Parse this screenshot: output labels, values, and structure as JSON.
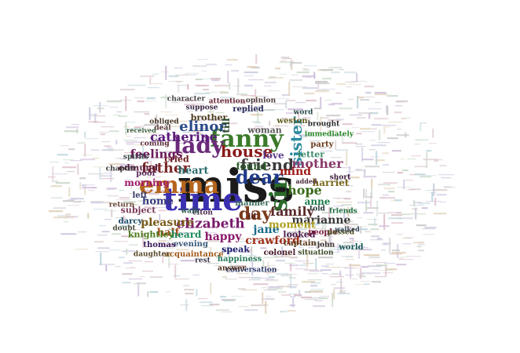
{
  "words": [
    {
      "text": "miss",
      "color": "#1a1a1a"
    },
    {
      "text": "time",
      "color": "#3b2fb0"
    },
    {
      "text": "fanny",
      "color": "#3a7a2a"
    },
    {
      "text": "emma",
      "color": "#b5651d"
    },
    {
      "text": "lady",
      "color": "#6b2a7a"
    },
    {
      "text": "sir",
      "color": "#2a6a2a"
    },
    {
      "text": "dear",
      "color": "#1f3a8a"
    },
    {
      "text": "house",
      "color": "#8a1a1a"
    },
    {
      "text": "sister",
      "color": "#2a8aa0"
    },
    {
      "text": "friend",
      "color": "#3a3a3a"
    },
    {
      "text": "elinor",
      "color": "#2a4a8a"
    },
    {
      "text": "day",
      "color": "#7a3a1a"
    },
    {
      "text": "elizabeth",
      "color": "#7a1a6a"
    },
    {
      "text": "catherine",
      "color": "#5a1a7a"
    },
    {
      "text": "father",
      "color": "#7a2a2a"
    },
    {
      "text": "family",
      "color": "#5a2a2a"
    },
    {
      "text": "jane",
      "color": "#1a6a8a"
    },
    {
      "text": "hope",
      "color": "#3a6a1a"
    },
    {
      "text": "mother",
      "color": "#8a3a6a"
    },
    {
      "text": "mind",
      "color": "#a01a1a"
    },
    {
      "text": "marianne",
      "color": "#3a3a3a"
    },
    {
      "text": "moment",
      "color": "#b0a020"
    },
    {
      "text": "happy",
      "color": "#8a1a6a"
    },
    {
      "text": "crawford",
      "color": "#a0301a"
    },
    {
      "text": "feelings",
      "color": "#6a1a5a"
    },
    {
      "text": "heart",
      "color": "#2a6a6a"
    },
    {
      "text": "home",
      "color": "#3a3a7a"
    },
    {
      "text": "pleasure",
      "color": "#7a5a1a"
    },
    {
      "text": "half",
      "color": "#a04a1a"
    },
    {
      "text": "found",
      "color": "#2a5a2a"
    },
    {
      "text": "heard",
      "color": "#1a8a5a"
    },
    {
      "text": "knightley",
      "color": "#4a7a1a"
    },
    {
      "text": "morning",
      "color": "#a01a6a"
    },
    {
      "text": "harriet",
      "color": "#7a6a1a"
    },
    {
      "text": "anne",
      "color": "#1a7a4a"
    },
    {
      "text": "love",
      "color": "#5a3a8a"
    },
    {
      "text": "letter",
      "color": "#3a8a6a"
    },
    {
      "text": "woman",
      "color": "#5a5a5a"
    },
    {
      "text": "brother",
      "color": "#4a3a1a"
    },
    {
      "text": "replied",
      "color": "#2a2a5a"
    },
    {
      "text": "looked",
      "color": "#4a1a4a"
    },
    {
      "text": "cried",
      "color": "#6a1a1a"
    },
    {
      "text": "speak",
      "color": "#1a1a6a"
    },
    {
      "text": "evening",
      "color": "#3a5a7a"
    },
    {
      "text": "happiness",
      "color": "#2a7a5a"
    },
    {
      "text": "colonel",
      "color": "#4a1a2a"
    },
    {
      "text": "captain",
      "color": "#5a3a1a"
    },
    {
      "text": "manner",
      "color": "#3a6a5a"
    },
    {
      "text": "people",
      "color": "#7a1a3a"
    },
    {
      "text": "party",
      "color": "#6a3a1a"
    },
    {
      "text": "immediately",
      "color": "#2a8a2a"
    },
    {
      "text": "passed",
      "color": "#4a4a1a"
    },
    {
      "text": "subject",
      "color": "#7a3a5a"
    },
    {
      "text": "acquaintance",
      "color": "#a05a1a"
    },
    {
      "text": "edmund",
      "color": "#5a1a3a"
    },
    {
      "text": "darcy",
      "color": "#1a4a6a"
    },
    {
      "text": "thomas",
      "color": "#3a1a5a"
    },
    {
      "text": "weston",
      "color": "#5a5a1a"
    },
    {
      "text": "told",
      "color": "#2a3a3a"
    },
    {
      "text": "friends",
      "color": "#1a6a3a"
    },
    {
      "text": "short",
      "color": "#3a1a3a"
    },
    {
      "text": "return",
      "color": "#6a4a3a"
    },
    {
      "text": "left",
      "color": "#3a3a6a"
    },
    {
      "text": "ill",
      "color": "#4a1a1a"
    },
    {
      "text": "till",
      "color": "#2a4a2a"
    },
    {
      "text": "poor",
      "color": "#5a2a5a"
    },
    {
      "text": "spirits",
      "color": "#3a4a4a"
    },
    {
      "text": "opinion",
      "color": "#4a3a3a"
    },
    {
      "text": "suppose",
      "color": "#3a2a4a"
    },
    {
      "text": "character",
      "color": "#4a4a4a"
    },
    {
      "text": "attention",
      "color": "#6a2a3a"
    },
    {
      "text": "conversation",
      "color": "#2a3a6a"
    },
    {
      "text": "answer",
      "color": "#4a2a1a"
    },
    {
      "text": "daughter",
      "color": "#5a4a2a"
    },
    {
      "text": "situation",
      "color": "#3a4a2a"
    },
    {
      "text": "world",
      "color": "#1a5a5a"
    },
    {
      "text": "coming",
      "color": "#5a2a3a"
    },
    {
      "text": "chapter",
      "color": "#3a3a3a"
    },
    {
      "text": "elton",
      "color": "#4a2a4a"
    },
    {
      "text": "walk",
      "color": "#2a5a4a"
    },
    {
      "text": "obliged",
      "color": "#4a3a2a"
    },
    {
      "text": "brought",
      "color": "#2a2a2a"
    },
    {
      "text": "john",
      "color": "#3a2a2a"
    },
    {
      "text": "word",
      "color": "#2a4a4a"
    },
    {
      "text": "deal",
      "color": "#5a3a3a"
    },
    {
      "text": "received",
      "color": "#3a5a3a"
    },
    {
      "text": "doubt",
      "color": "#4a4a3a"
    },
    {
      "text": "rest",
      "color": "#3a3a4a"
    },
    {
      "text": "added",
      "color": "#4a2a3a"
    },
    {
      "text": "walked",
      "color": "#2a3a4a"
    }
  ]
}
